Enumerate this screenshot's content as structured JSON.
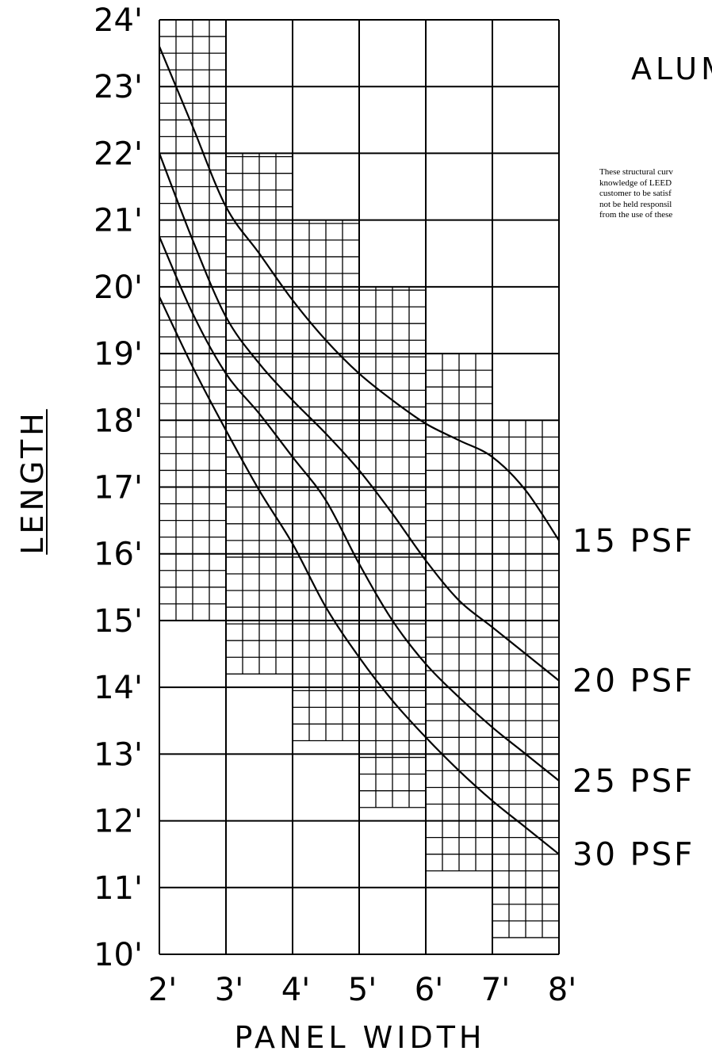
{
  "heading": "ALUM",
  "disclaimer_lines": [
    "These structural curv",
    "knowledge of LEED",
    "customer to be satisf",
    "not be held responsil",
    "from the use of these"
  ],
  "chart_data": {
    "type": "line",
    "xlabel": "PANEL WIDTH",
    "ylabel": "LENGTH",
    "xlim": [
      2,
      8
    ],
    "ylim": [
      10,
      24
    ],
    "x_ticks": [
      2,
      3,
      4,
      5,
      6,
      7,
      8
    ],
    "x_tick_labels": [
      "2'",
      "3'",
      "4'",
      "5'",
      "6'",
      "7'",
      "8'"
    ],
    "y_ticks": [
      10,
      11,
      12,
      13,
      14,
      15,
      16,
      17,
      18,
      19,
      20,
      21,
      22,
      23,
      24
    ],
    "y_tick_labels": [
      "10'",
      "11'",
      "12'",
      "13'",
      "14'",
      "15'",
      "16'",
      "17'",
      "18'",
      "19'",
      "20'",
      "21'",
      "22'",
      "23'",
      "24'"
    ],
    "grid": true,
    "fine_grid_bands": [
      {
        "x": [
          2,
          3
        ],
        "y": [
          15,
          24
        ]
      },
      {
        "x": [
          3,
          4
        ],
        "y": [
          14.2,
          22
        ]
      },
      {
        "x": [
          4,
          5
        ],
        "y": [
          13.2,
          21
        ]
      },
      {
        "x": [
          5,
          6
        ],
        "y": [
          12.2,
          20
        ]
      },
      {
        "x": [
          6,
          7
        ],
        "y": [
          11.25,
          19
        ]
      },
      {
        "x": [
          7,
          8
        ],
        "y": [
          10.25,
          18
        ]
      }
    ],
    "series": [
      {
        "name": "15 PSF",
        "x": [
          2,
          2.5,
          3,
          3.5,
          4,
          4.5,
          5,
          5.5,
          6,
          6.5,
          7,
          7.5,
          8
        ],
        "y": [
          23.6,
          22.4,
          21.2,
          20.5,
          19.8,
          19.2,
          18.7,
          18.3,
          17.95,
          17.7,
          17.45,
          16.95,
          16.2
        ]
      },
      {
        "name": "20 PSF",
        "x": [
          2,
          2.5,
          3,
          3.5,
          4,
          4.5,
          5,
          5.5,
          6,
          6.5,
          7,
          7.5,
          8
        ],
        "y": [
          22.0,
          20.7,
          19.55,
          18.85,
          18.3,
          17.8,
          17.25,
          16.6,
          15.9,
          15.3,
          14.9,
          14.5,
          14.1
        ]
      },
      {
        "name": "25 PSF",
        "x": [
          2,
          2.5,
          3,
          3.5,
          4,
          4.5,
          5,
          5.5,
          6,
          6.5,
          7,
          7.5,
          8
        ],
        "y": [
          20.75,
          19.6,
          18.7,
          18.1,
          17.45,
          16.8,
          15.85,
          15.0,
          14.35,
          13.85,
          13.4,
          13.0,
          12.6
        ]
      },
      {
        "name": "30 PSF",
        "x": [
          2,
          2.5,
          3,
          3.5,
          4,
          4.5,
          5,
          5.5,
          6,
          6.5,
          7,
          7.5,
          8
        ],
        "y": [
          19.85,
          18.8,
          17.85,
          16.95,
          16.15,
          15.2,
          14.45,
          13.8,
          13.25,
          12.75,
          12.3,
          11.9,
          11.5
        ]
      }
    ]
  }
}
